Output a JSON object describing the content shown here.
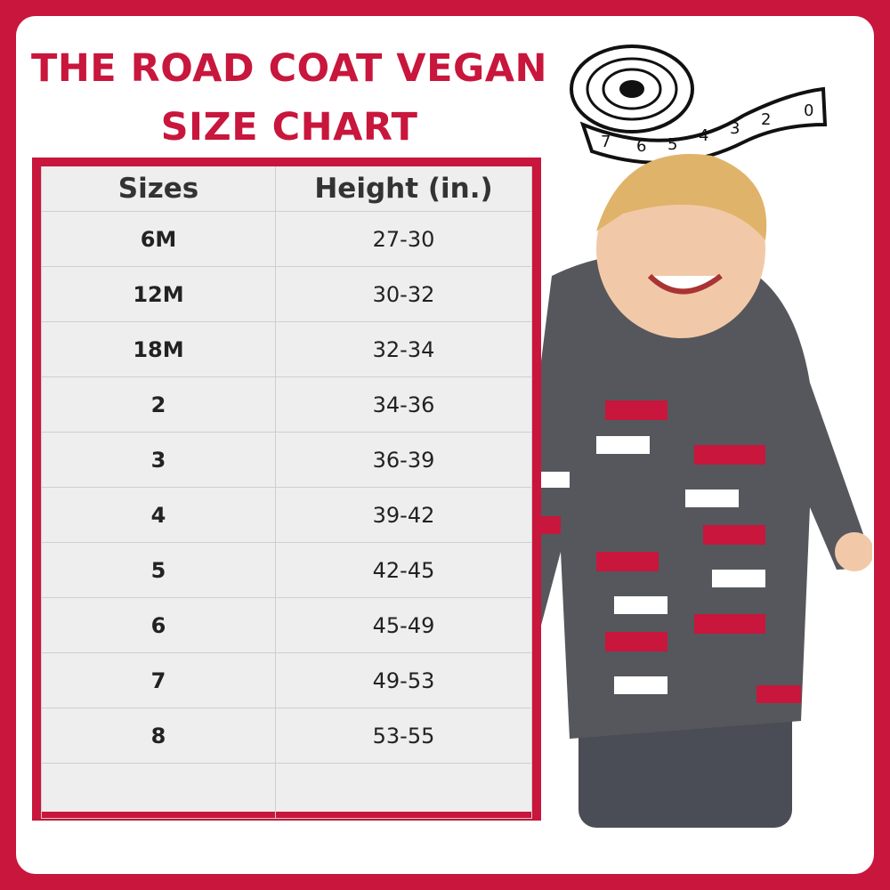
{
  "title": {
    "line1": "THE ROAD COAT VEGAN",
    "line2": "SIZE CHART"
  },
  "table": {
    "headers": [
      "Sizes",
      "Height (in.)"
    ],
    "rows": [
      [
        "6M",
        "27-30"
      ],
      [
        "12M",
        "30-32"
      ],
      [
        "18M",
        "32-34"
      ],
      [
        "2",
        "34-36"
      ],
      [
        "3",
        "36-39"
      ],
      [
        "4",
        "39-42"
      ],
      [
        "5",
        "42-45"
      ],
      [
        "6",
        "45-49"
      ],
      [
        "7",
        "49-53"
      ],
      [
        "8",
        "53-55"
      ],
      [
        "",
        ""
      ]
    ]
  },
  "tape_numbers": [
    "7",
    "6",
    "5",
    "4",
    "3",
    "2",
    "0"
  ],
  "colors": {
    "brand_red": "#c8163c",
    "table_bg": "#eeeeee",
    "coat": "#55575c"
  }
}
